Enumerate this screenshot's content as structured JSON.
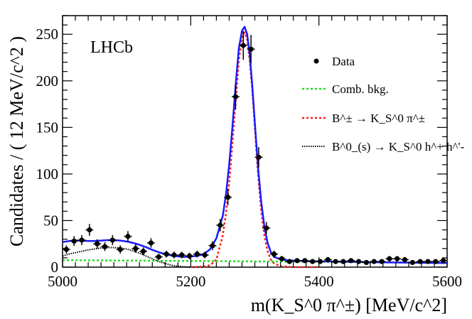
{
  "chart_data": {
    "type": "scatter",
    "title": "",
    "experiment_label": "LHCb",
    "xlabel": "m(K_S^0 π^±) [MeV/c^2]",
    "ylabel": "Candidates / ( 12 MeV/c^2 )",
    "xlim": [
      5000,
      5600
    ],
    "ylim": [
      0,
      270
    ],
    "x_ticks": [
      5000,
      5200,
      5400,
      5600
    ],
    "y_ticks": [
      0,
      50,
      100,
      150,
      200,
      250
    ],
    "x_tick_labels": [
      "5000",
      "5200",
      "5400",
      "5600"
    ],
    "y_tick_labels": [
      "0",
      "50",
      "100",
      "150",
      "200",
      "250"
    ],
    "legend_position": "top-right",
    "legend": {
      "data": "Data",
      "comb": "Comb. bkg.",
      "signal": "B^± → K_S^0 π^±",
      "partreco": "B^0_(s) → K_S^0 h^+ h^'-"
    },
    "colors": {
      "total": "#1a1aff",
      "comb": "#22dd22",
      "signal": "#ff1a1a",
      "partreco": "#000000",
      "data": "#000000"
    },
    "series": [
      {
        "name": "Data",
        "kind": "points_with_errors",
        "bin_width": 12,
        "x": [
          5006,
          5018,
          5030,
          5042,
          5054,
          5066,
          5078,
          5090,
          5102,
          5114,
          5126,
          5138,
          5150,
          5162,
          5174,
          5186,
          5198,
          5210,
          5222,
          5234,
          5246,
          5258,
          5270,
          5282,
          5294,
          5306,
          5318,
          5330,
          5342,
          5354,
          5366,
          5378,
          5390,
          5402,
          5414,
          5426,
          5438,
          5450,
          5462,
          5474,
          5486,
          5498,
          5510,
          5522,
          5534,
          5546,
          5558,
          5570,
          5582,
          5594
        ],
        "y": [
          19,
          28,
          29,
          40,
          25,
          22,
          29,
          19,
          33,
          20,
          17,
          26,
          11,
          14,
          13,
          13,
          12,
          14,
          13,
          23,
          45,
          75,
          183,
          238,
          234,
          118,
          42,
          14,
          9,
          6,
          7,
          7,
          6,
          6,
          8,
          6,
          6,
          7,
          6,
          5,
          6,
          6,
          9,
          9,
          8,
          5,
          6,
          6,
          6,
          7
        ],
        "yerr": [
          4.4,
          5.3,
          5.4,
          6.3,
          5.0,
          4.7,
          5.4,
          4.4,
          5.7,
          4.5,
          4.1,
          5.1,
          3.3,
          3.7,
          3.6,
          3.6,
          3.5,
          3.7,
          3.6,
          4.8,
          6.7,
          8.7,
          13.5,
          15.4,
          15.3,
          10.9,
          6.5,
          3.7,
          3.0,
          2.4,
          2.6,
          2.6,
          2.4,
          2.4,
          2.8,
          2.4,
          2.4,
          2.6,
          2.4,
          2.2,
          2.4,
          2.4,
          3.0,
          3.0,
          2.8,
          2.2,
          2.4,
          2.4,
          2.4,
          2.6
        ]
      },
      {
        "name": "Total fit",
        "kind": "curve",
        "x": [
          5000,
          5010,
          5020,
          5030,
          5040,
          5050,
          5060,
          5070,
          5080,
          5090,
          5100,
          5110,
          5120,
          5130,
          5140,
          5150,
          5160,
          5170,
          5180,
          5190,
          5200,
          5210,
          5220,
          5230,
          5240,
          5250,
          5255,
          5260,
          5265,
          5270,
          5275,
          5280,
          5284,
          5288,
          5292,
          5296,
          5300,
          5305,
          5310,
          5315,
          5320,
          5325,
          5330,
          5340,
          5350,
          5360,
          5380,
          5400,
          5450,
          5500,
          5550,
          5600
        ],
        "y": [
          27,
          28,
          28.5,
          28.5,
          28,
          28,
          28.5,
          29,
          29,
          28.5,
          27.5,
          26,
          24,
          21.5,
          18.5,
          16,
          14,
          12.5,
          11.5,
          11,
          11.5,
          12,
          14,
          19,
          31,
          55,
          78,
          110,
          150,
          195,
          235,
          254,
          258,
          250,
          228,
          195,
          155,
          107,
          70,
          43,
          26,
          16,
          11,
          8.5,
          7.5,
          7,
          6.5,
          6.2,
          5.7,
          5.2,
          4.8,
          4.4
        ]
      },
      {
        "name": "Comb. bkg.",
        "kind": "curve",
        "x": [
          5000,
          5100,
          5200,
          5300,
          5400,
          5500,
          5600
        ],
        "y": [
          7.5,
          7.0,
          6.6,
          6.2,
          5.7,
          5.2,
          4.7
        ]
      },
      {
        "name": "Signal",
        "kind": "curve",
        "x": [
          5200,
          5220,
          5230,
          5240,
          5250,
          5255,
          5260,
          5265,
          5270,
          5275,
          5280,
          5284,
          5288,
          5292,
          5296,
          5300,
          5305,
          5310,
          5315,
          5320,
          5325,
          5330,
          5340,
          5350,
          5360,
          5380,
          5400
        ],
        "y": [
          0,
          0.5,
          2,
          8,
          34,
          58,
          90,
          132,
          178,
          222,
          246,
          252,
          244,
          222,
          190,
          150,
          100,
          60,
          33,
          17,
          8,
          4,
          1,
          0.5,
          0,
          0,
          0
        ]
      },
      {
        "name": "Partially reconstructed",
        "kind": "curve",
        "x": [
          5000,
          5010,
          5020,
          5030,
          5040,
          5050,
          5060,
          5070,
          5080,
          5090,
          5100,
          5110,
          5120,
          5130,
          5140,
          5150,
          5160,
          5170,
          5180,
          5190,
          5200,
          5210,
          5220
        ],
        "y": [
          12,
          14,
          15.5,
          17,
          18.5,
          19.5,
          20.5,
          21,
          21,
          20.5,
          19.5,
          17.5,
          15,
          12,
          9,
          6,
          4,
          2,
          1,
          0.3,
          0,
          0,
          0
        ]
      }
    ]
  }
}
